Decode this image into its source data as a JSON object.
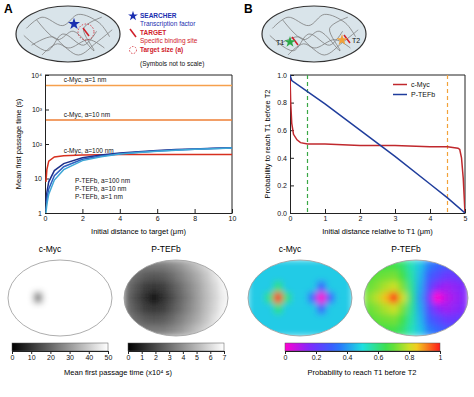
{
  "panel_labels": [
    "A",
    "B"
  ],
  "schematic_a": {
    "items": [
      {
        "title": "SEARCHER",
        "text": "Transcription factor"
      },
      {
        "title": "TARGET",
        "text": "Specific binding site"
      },
      {
        "title": "Target size (a)"
      }
    ],
    "note": "(Symbols not to scale)"
  },
  "schematic_b": {
    "targets": [
      "T1",
      "T2"
    ]
  },
  "chart_data": [
    {
      "type": "line",
      "log": "y",
      "x": [
        0.05,
        0.1,
        0.2,
        0.5,
        1,
        2,
        3,
        4,
        5,
        6,
        7,
        8,
        9,
        10
      ],
      "xlim": [
        0,
        10
      ],
      "xticks": [
        0,
        2,
        4,
        6,
        8,
        10
      ],
      "ylim": [
        1,
        10000
      ],
      "yticks": [
        1,
        10,
        {
          "value": 100,
          "label": "10²"
        },
        {
          "value": 1000,
          "label": "10³"
        },
        {
          "value": 10000,
          "label": "10⁴"
        }
      ],
      "x_label": "Initial distance to target (μm)",
      "y_label": "Mean first passage time (s)",
      "series": [
        {
          "name": "c-Myc, a=1 nm",
          "color": "#f6a04d",
          "values": [
            5000,
            5000,
            5000,
            5000,
            5000,
            5000,
            5000,
            5000,
            5000,
            5000,
            5000,
            5000,
            5000,
            5000
          ]
        },
        {
          "name": "c-Myc, a=10 nm",
          "color": "#ee7f35",
          "values": [
            500,
            500,
            500,
            500,
            500,
            500,
            500,
            500,
            500,
            500,
            500,
            500,
            500,
            500
          ]
        },
        {
          "name": "c-Myc, a=100 nm",
          "color": "#d7301f",
          "values": [
            8,
            18,
            32,
            42,
            46,
            48,
            49,
            50,
            50,
            50,
            50,
            50,
            50,
            50
          ]
        },
        {
          "name": "P-TEFb, a=100 nm",
          "color": "#1c2f8a",
          "values": [
            2,
            4,
            8,
            17,
            27,
            40,
            48,
            55,
            60,
            65,
            69,
            72,
            75,
            78
          ]
        },
        {
          "name": "P-TEFb, a=10 nm",
          "color": "#2e5fc1",
          "values": [
            1.2,
            2.5,
            5,
            12,
            22,
            36,
            45,
            52,
            58,
            63,
            67,
            71,
            74,
            77
          ]
        },
        {
          "name": "P-TEFb, a=1 nm",
          "color": "#3fa7d6",
          "values": [
            1,
            1.8,
            3.5,
            9,
            18,
            33,
            43,
            51,
            57,
            62,
            66,
            70,
            73,
            76
          ]
        }
      ]
    },
    {
      "type": "line",
      "xlim": [
        0,
        5
      ],
      "xticks": [
        0,
        1,
        2,
        3,
        4,
        5
      ],
      "ylim": [
        0,
        1
      ],
      "yticks": [
        {
          "value": 0,
          "label": "0.0"
        },
        0.2,
        0.4,
        0.6,
        0.8,
        {
          "value": 1,
          "label": "1.0"
        }
      ],
      "x_label": "Initial distance relative to T1 (μm)",
      "y_label": "Probability to reach T1 before T2",
      "legend": "upper right",
      "series": [
        {
          "name": "c-Myc",
          "color": "#c0282d",
          "x": [
            0,
            0.02,
            0.05,
            0.1,
            0.2,
            0.3,
            0.5,
            1,
            2,
            3,
            4,
            4.5,
            4.8,
            4.85,
            4.9,
            4.95,
            4.98,
            5
          ],
          "values": [
            1,
            0.8,
            0.65,
            0.57,
            0.53,
            0.51,
            0.5,
            0.5,
            0.49,
            0.49,
            0.48,
            0.48,
            0.47,
            0.46,
            0.4,
            0.25,
            0.1,
            0
          ]
        },
        {
          "name": "P-TEFb",
          "color": "#1f3d9c",
          "x": [
            0,
            0.05,
            0.5,
            1,
            2,
            3,
            4,
            4.5,
            5
          ],
          "values": [
            1,
            0.96,
            0.88,
            0.79,
            0.6,
            0.41,
            0.21,
            0.11,
            0
          ]
        }
      ],
      "reference_lines": [
        {
          "value": 0.5,
          "color": "#3aa845",
          "line_style": "dashed"
        },
        {
          "value": 4.5,
          "color": "#f2a23a",
          "line_style": "dashed"
        }
      ]
    },
    {
      "type": "heatmap",
      "colorbar_title": "Mean first passage time (x10⁴ s)",
      "maps": [
        {
          "title": "c-Myc",
          "colorbar_range": [
            0,
            50
          ],
          "colorbar_ticks": [
            0,
            10,
            20,
            30,
            40,
            50
          ],
          "cells": [
            [
              50,
              50,
              50,
              50,
              50,
              50,
              50,
              50,
              50,
              50,
              50,
              50
            ],
            [
              50,
              50,
              50,
              50,
              50,
              50,
              50,
              50,
              50,
              50,
              50,
              50
            ],
            [
              50,
              50,
              50,
              50,
              50,
              50,
              50,
              50,
              50,
              50,
              50,
              50
            ],
            [
              50,
              50,
              50,
              25,
              50,
              50,
              50,
              50,
              50,
              50,
              50,
              50
            ],
            [
              50,
              50,
              50,
              50,
              50,
              50,
              50,
              50,
              50,
              50,
              50,
              50
            ],
            [
              50,
              50,
              50,
              50,
              50,
              50,
              50,
              50,
              50,
              50,
              50,
              50
            ],
            [
              50,
              50,
              50,
              50,
              50,
              50,
              50,
              50,
              50,
              50,
              50,
              50
            ]
          ]
        },
        {
          "title": "P-TEFb",
          "colorbar_range": [
            0,
            7
          ],
          "colorbar_ticks": [
            0,
            1,
            2,
            3,
            4,
            5,
            6,
            7
          ],
          "cells": [
            [
              4.1,
              3.7,
              3.4,
              3.4,
              3.4,
              3.7,
              4.1,
              4.7,
              5.3,
              5.9,
              6.5,
              7
            ],
            [
              3.5,
              2.9,
              2.5,
              2.4,
              2.5,
              2.9,
              3.5,
              4.1,
              4.7,
              5.4,
              6.2,
              6.9
            ],
            [
              3,
              2.3,
              1.7,
              1.5,
              1.7,
              2.3,
              3,
              3.7,
              4.4,
              5.2,
              5.9,
              6.7
            ],
            [
              2.8,
              2,
              1.3,
              0.2,
              1.3,
              2,
              2.8,
              3.5,
              4.3,
              5.1,
              5.8,
              6.6
            ],
            [
              3,
              2.3,
              1.7,
              1.5,
              1.7,
              2.3,
              3,
              3.7,
              4.4,
              5.2,
              5.9,
              6.7
            ],
            [
              3.5,
              2.9,
              2.5,
              2.4,
              2.5,
              2.9,
              3.5,
              4.1,
              4.7,
              5.4,
              6.2,
              6.9
            ],
            [
              4.1,
              3.7,
              3.4,
              3.4,
              3.4,
              3.7,
              4.1,
              4.7,
              5.3,
              5.9,
              6.5,
              7
            ]
          ]
        }
      ]
    },
    {
      "type": "heatmap",
      "colorbar_title": "Probability to reach T1 before T2",
      "colorbar_range": [
        0,
        1
      ],
      "colorbar_ticks": [
        0,
        0.2,
        0.4,
        0.6,
        0.8,
        1
      ],
      "maps": [
        {
          "title": "c-Myc",
          "cells": [
            [
              0.47,
              0.47,
              0.47,
              0.47,
              0.47,
              0.47,
              0.47,
              0.47,
              0.47,
              0.47,
              0.47,
              0.47
            ],
            [
              0.47,
              0.47,
              0.47,
              0.47,
              0.47,
              0.47,
              0.47,
              0.47,
              0.47,
              0.47,
              0.47,
              0.47
            ],
            [
              0.47,
              0.47,
              0.47,
              0.6,
              0.47,
              0.47,
              0.47,
              0.47,
              0.3,
              0.47,
              0.47,
              0.47
            ],
            [
              0.47,
              0.47,
              0.6,
              1,
              0.6,
              0.47,
              0.47,
              0.3,
              0,
              0.3,
              0.47,
              0.47
            ],
            [
              0.47,
              0.47,
              0.47,
              0.6,
              0.47,
              0.47,
              0.47,
              0.47,
              0.3,
              0.47,
              0.47,
              0.47
            ],
            [
              0.47,
              0.47,
              0.47,
              0.47,
              0.47,
              0.47,
              0.47,
              0.47,
              0.47,
              0.47,
              0.47,
              0.47
            ],
            [
              0.47,
              0.47,
              0.47,
              0.47,
              0.47,
              0.47,
              0.47,
              0.47,
              0.47,
              0.47,
              0.47,
              0.47
            ]
          ]
        },
        {
          "title": "P-TEFb",
          "cells": [
            [
              0.65,
              0.66,
              0.66,
              0.66,
              0.62,
              0.54,
              0.46,
              0.36,
              0.32,
              0.28,
              0.28,
              0.29
            ],
            [
              0.68,
              0.7,
              0.71,
              0.72,
              0.66,
              0.56,
              0.44,
              0.3,
              0.25,
              0.2,
              0.2,
              0.22
            ],
            [
              0.7,
              0.73,
              0.77,
              0.8,
              0.72,
              0.58,
              0.42,
              0.25,
              0.15,
              0.12,
              0.14,
              0.16
            ],
            [
              0.73,
              0.78,
              0.86,
              1,
              0.8,
              0.6,
              0.4,
              0.2,
              0,
              0.08,
              0.12,
              0.15
            ],
            [
              0.7,
              0.73,
              0.77,
              0.8,
              0.72,
              0.58,
              0.42,
              0.25,
              0.15,
              0.12,
              0.14,
              0.16
            ],
            [
              0.68,
              0.7,
              0.71,
              0.72,
              0.66,
              0.56,
              0.44,
              0.3,
              0.25,
              0.2,
              0.2,
              0.22
            ],
            [
              0.65,
              0.66,
              0.66,
              0.66,
              0.62,
              0.54,
              0.46,
              0.36,
              0.32,
              0.28,
              0.28,
              0.29
            ]
          ]
        }
      ]
    }
  ]
}
